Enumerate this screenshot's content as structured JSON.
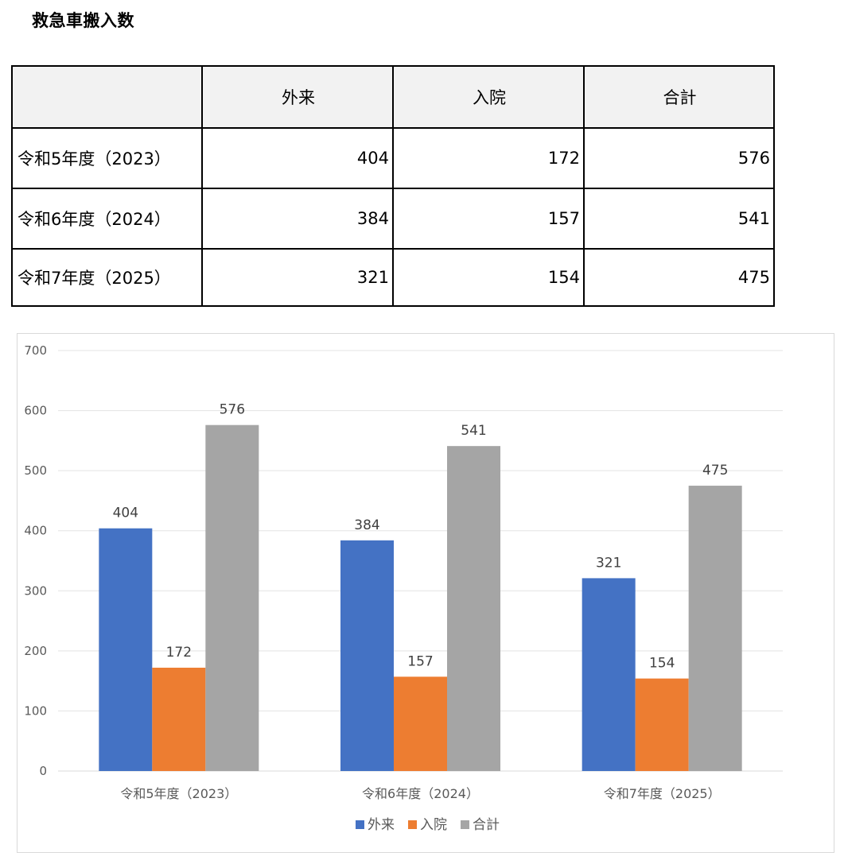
{
  "page": {
    "title": "救急車搬入数"
  },
  "table": {
    "headers": [
      "",
      "外来",
      "入院",
      "合計"
    ],
    "rows": [
      {
        "label": "令和5年度（2023）",
        "values": [
          "404",
          "172",
          "576"
        ]
      },
      {
        "label": "令和6年度（2024）",
        "values": [
          "384",
          "157",
          "541"
        ]
      },
      {
        "label": "令和7年度（2025）",
        "values": [
          "321",
          "154",
          "475"
        ]
      }
    ]
  },
  "chart_data": {
    "type": "bar",
    "title": "",
    "xlabel": "",
    "ylabel": "",
    "categories": [
      "令和5年度（2023）",
      "令和6年度（2024）",
      "令和7年度（2025）"
    ],
    "series": [
      {
        "name": "外来",
        "values": [
          404,
          384,
          321
        ],
        "color": "#4472c4"
      },
      {
        "name": "入院",
        "values": [
          172,
          157,
          154
        ],
        "color": "#ed7d31"
      },
      {
        "name": "合計",
        "values": [
          576,
          541,
          475
        ],
        "color": "#a5a5a5"
      }
    ],
    "ylim": [
      0,
      700
    ],
    "yticks": [
      0,
      100,
      200,
      300,
      400,
      500,
      600,
      700
    ],
    "grid": true,
    "data_labels": true,
    "legend": "bottom"
  }
}
